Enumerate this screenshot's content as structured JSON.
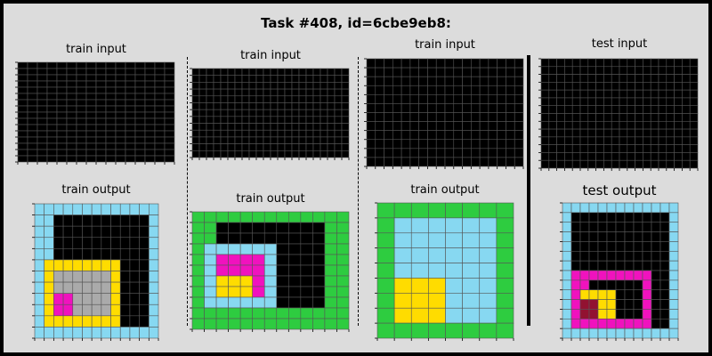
{
  "title": "Task #408, id=6cbe9eb8:",
  "panels": [
    {
      "label": "train input",
      "rows": [
        "0000000000000000",
        "0000000000000000",
        "0000000000000000",
        "0000000000000000",
        "0000000000000000",
        "0000000000000000",
        "0000000000000000",
        "0000000000000000",
        "0000000000000000",
        "0000000000000000",
        "0000000000000000",
        "0000000000000000",
        "0000000000000000",
        "0000000000000000",
        "0000000000000000",
        "0000000000000000"
      ]
    },
    {
      "label": "train input",
      "rows": [
        "0000000000000000000000",
        "0000000000000000000000",
        "0000000000000000000000",
        "0000000000000000000000",
        "0000000000000000000000",
        "0000000000000000000000",
        "0000000000000000000000",
        "0000000000000000000000",
        "0000000000000000000000",
        "0000000000000000000000",
        "0000000000000000000000",
        "0000000000000000000000",
        "0000000000000000000000"
      ]
    },
    {
      "label": "train input",
      "rows": [
        "000000000000000000",
        "000000000000000000",
        "000000000000000000",
        "000000000000000000",
        "000000000000000000",
        "000000000000000000",
        "000000000000000000",
        "000000000000000000",
        "000000000000000000",
        "000000000000000000",
        "000000000000000000",
        "000000000000000000"
      ]
    },
    {
      "label": "test input",
      "rows": [
        "00000000000000000000",
        "00000000000000000000",
        "00000000000000000000",
        "00000000000000000000",
        "00000000000000000000",
        "00000000000000000000",
        "00000000000000000000",
        "00000000000000000000",
        "00000000000000000000",
        "00000000000000000000",
        "00000000000000000000",
        "00000000000000000000",
        "00000000000000000000",
        "00000000000000000000"
      ]
    },
    {
      "label": "train output",
      "rows": [
        "8888888888888",
        "8800000000008",
        "8800000000008",
        "8800000000008",
        "8800000000008",
        "8444444440008",
        "8455555540008",
        "8455555540008",
        "8466555540008",
        "8466555540008",
        "8444444440008",
        "8888888888888"
      ]
    },
    {
      "label": "train output",
      "rows": [
        "3333333333333",
        "3300000000033",
        "3300000000033",
        "3888888000033",
        "3866668000033",
        "3866668000033",
        "3844468000033",
        "3844468000033",
        "3888888000033",
        "3333333333333",
        "3333333333333"
      ]
    },
    {
      "label": "train output",
      "rows": [
        "33333333",
        "38888883",
        "38888883",
        "38888883",
        "38888883",
        "34448883",
        "34448883",
        "34448883",
        "33333333"
      ]
    },
    {
      "label": "test output",
      "rows": [
        "8888888888888",
        "8000000000008",
        "8000000000008",
        "8000000000008",
        "8000000000008",
        "8000000000008",
        "8000000000008",
        "8666666666008",
        "8660000006008",
        "8644440006008",
        "8699440006008",
        "8699440006008",
        "8666666666008",
        "8888888888888"
      ]
    }
  ],
  "palette": {
    "0": "#000000",
    "1": "#1e93ff",
    "2": "#f93c31",
    "3": "#2ecc40",
    "4": "#ffdc00",
    "5": "#aaaaaa",
    "6": "#f012be",
    "8": "#87d8f1",
    "9": "#921231"
  },
  "grid_line_color": "#555555"
}
